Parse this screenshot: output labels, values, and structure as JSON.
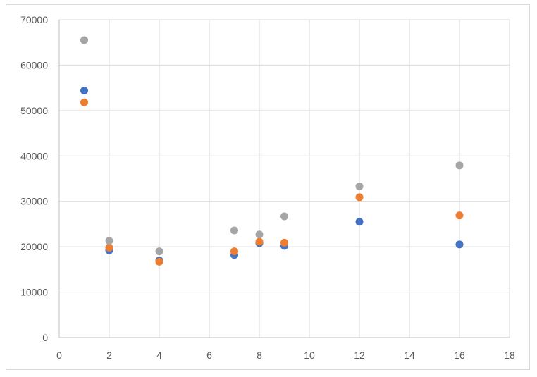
{
  "chart_data": {
    "type": "scatter",
    "title": "",
    "xlabel": "",
    "ylabel": "",
    "xlim": [
      0,
      18
    ],
    "ylim": [
      0,
      70000
    ],
    "xticks": [
      0,
      2,
      4,
      6,
      8,
      10,
      12,
      14,
      16,
      18
    ],
    "yticks": [
      0,
      10000,
      20000,
      30000,
      40000,
      50000,
      60000,
      70000
    ],
    "grid": true,
    "legend": "none",
    "series": [
      {
        "color": "#4472c4",
        "points": [
          {
            "x": 1,
            "y": 54400
          },
          {
            "x": 2,
            "y": 19200
          },
          {
            "x": 4,
            "y": 17000
          },
          {
            "x": 7,
            "y": 18200
          },
          {
            "x": 8,
            "y": 20800
          },
          {
            "x": 9,
            "y": 20200
          },
          {
            "x": 12,
            "y": 25500
          },
          {
            "x": 16,
            "y": 20500
          }
        ]
      },
      {
        "color": "#ed7d31",
        "points": [
          {
            "x": 1,
            "y": 51800
          },
          {
            "x": 2,
            "y": 19800
          },
          {
            "x": 4,
            "y": 16700
          },
          {
            "x": 7,
            "y": 19000
          },
          {
            "x": 8,
            "y": 21100
          },
          {
            "x": 9,
            "y": 20900
          },
          {
            "x": 12,
            "y": 30900
          },
          {
            "x": 16,
            "y": 26900
          }
        ]
      },
      {
        "color": "#a5a5a5",
        "points": [
          {
            "x": 1,
            "y": 65500
          },
          {
            "x": 2,
            "y": 21300
          },
          {
            "x": 4,
            "y": 19000
          },
          {
            "x": 7,
            "y": 23600
          },
          {
            "x": 8,
            "y": 22700
          },
          {
            "x": 9,
            "y": 26700
          },
          {
            "x": 12,
            "y": 33300
          },
          {
            "x": 16,
            "y": 37900
          }
        ]
      }
    ]
  }
}
